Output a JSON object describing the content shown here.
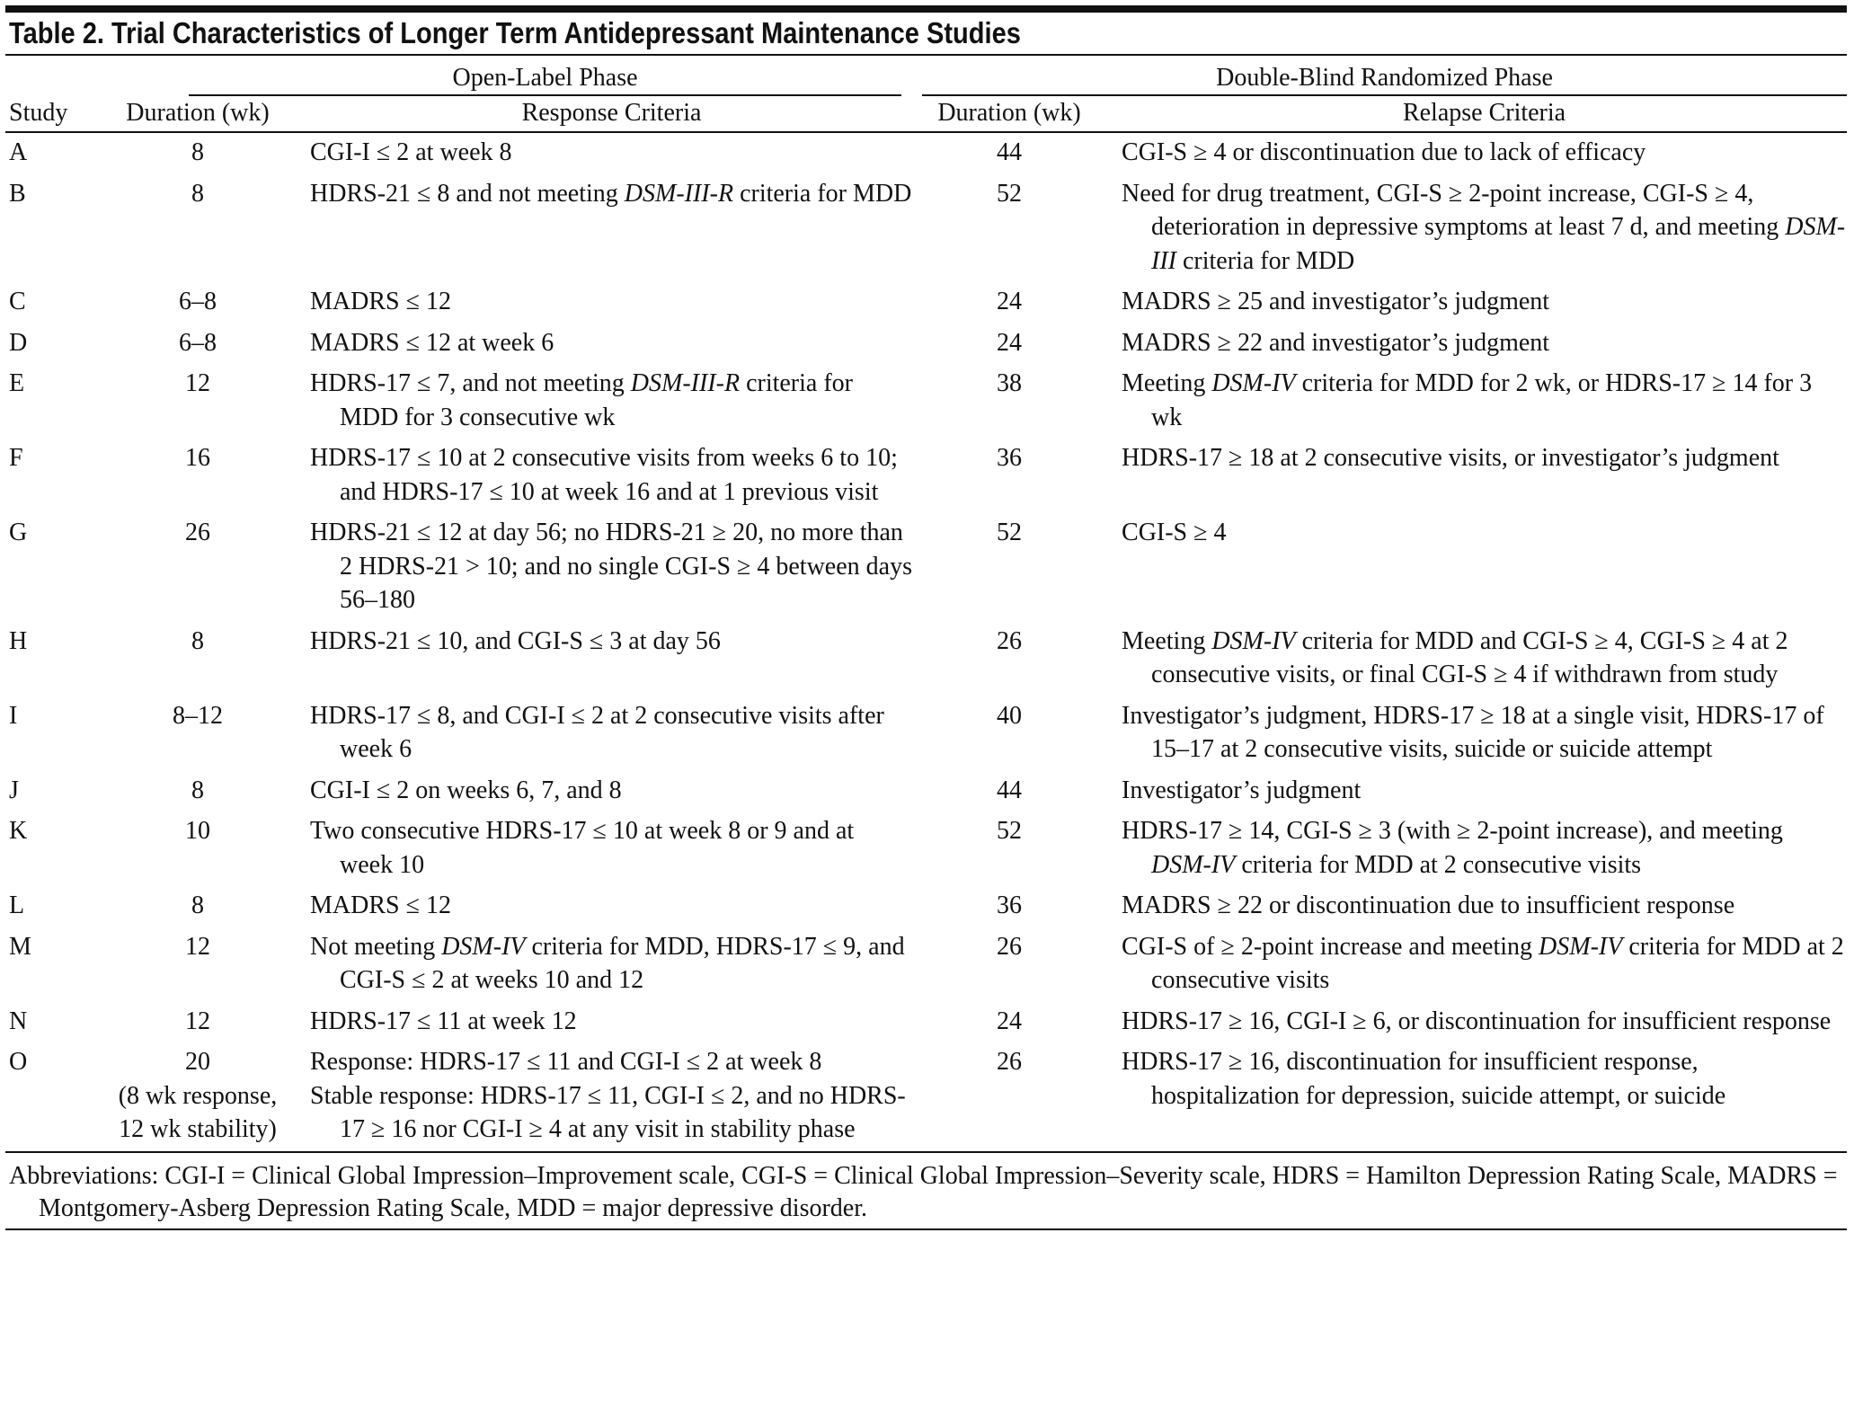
{
  "header": {
    "title": "Table 2. Trial Characteristics of Longer Term Antidepressant Maintenance Studies"
  },
  "table": {
    "groups": [
      "Open-Label Phase",
      "Double-Blind Randomized Phase"
    ],
    "columns": [
      "Study",
      "Duration (wk)",
      "Response Criteria",
      "Duration (wk)",
      "Relapse Criteria"
    ],
    "rows": [
      [
        "A",
        "8",
        "CGI-I ≤ 2 at week 8",
        "44",
        "CGI-S ≥ 4 or discontinuation due to lack of efficacy"
      ],
      [
        "B",
        "8",
        [
          [
            "HDRS-21 ≤ 8 and not meeting ",
            {
              "em": "DSM-III-R"
            },
            " criteria for MDD"
          ]
        ],
        "52",
        [
          [
            "Need for drug treatment, CGI-S ≥ 2-point increase, CGI-S ≥ 4, deterioration in depressive symptoms at least 7 d, and meeting ",
            {
              "em": "DSM-III"
            },
            " criteria for MDD"
          ]
        ]
      ],
      [
        "C",
        "6–8",
        "MADRS ≤ 12",
        "24",
        "MADRS ≥ 25 and investigator’s judgment"
      ],
      [
        "D",
        "6–8",
        "MADRS ≤ 12 at week 6",
        "24",
        "MADRS ≥ 22 and investigator’s judgment"
      ],
      [
        "E",
        "12",
        [
          [
            "HDRS-17 ≤ 7, and not meeting ",
            {
              "em": "DSM-III-R"
            },
            " criteria for MDD for 3 consecutive wk"
          ]
        ],
        "38",
        [
          [
            "Meeting ",
            {
              "em": "DSM-IV"
            },
            " criteria for MDD for 2 wk, or HDRS-17 ≥ 14 for 3 wk"
          ]
        ]
      ],
      [
        "F",
        "16",
        "HDRS-17 ≤ 10 at 2 consecutive visits from weeks 6 to 10; and HDRS-17 ≤ 10 at week 16 and at 1 previous visit",
        "36",
        "HDRS-17 ≥ 18 at 2 consecutive visits, or investigator’s judgment"
      ],
      [
        "G",
        "26",
        "HDRS-21 ≤ 12 at day 56; no HDRS-21 ≥ 20, no more than 2 HDRS-21 > 10; and no single CGI-S ≥ 4 between days 56–180",
        "52",
        "CGI-S ≥ 4"
      ],
      [
        "H",
        "8",
        "HDRS-21 ≤ 10, and CGI-S ≤ 3 at day 56",
        "26",
        [
          [
            "Meeting ",
            {
              "em": "DSM-IV"
            },
            " criteria for MDD and CGI-S ≥ 4, CGI-S ≥ 4 at 2 consecutive visits, or final CGI-S ≥ 4 if withdrawn from study"
          ]
        ]
      ],
      [
        "I",
        "8–12",
        "HDRS-17 ≤ 8, and CGI-I ≤ 2 at 2 consecutive visits after week 6",
        "40",
        "Investigator’s judgment, HDRS-17 ≥ 18 at a single visit, HDRS-17 of 15–17 at 2 consecutive visits, suicide or suicide attempt"
      ],
      [
        "J",
        "8",
        "CGI-I ≤ 2 on weeks 6, 7, and 8",
        "44",
        "Investigator’s judgment"
      ],
      [
        "K",
        "10",
        "Two consecutive HDRS-17 ≤ 10 at week 8 or 9 and at week 10",
        "52",
        [
          [
            "HDRS-17 ≥ 14, CGI-S ≥ 3 (with ≥ 2-point increase), and meeting ",
            {
              "em": "DSM-IV"
            },
            " criteria for MDD at 2 consecutive visits"
          ]
        ]
      ],
      [
        "L",
        "8",
        "MADRS ≤ 12",
        "36",
        "MADRS ≥ 22 or discontinuation due to insufficient response"
      ],
      [
        "M",
        "12",
        [
          [
            "Not meeting ",
            {
              "em": "DSM-IV"
            },
            " criteria for MDD, HDRS-17 ≤ 9, and CGI-S ≤ 2 at weeks 10 and 12"
          ]
        ],
        "26",
        [
          [
            "CGI-S of ≥ 2-point increase and meeting ",
            {
              "em": "DSM-IV"
            },
            " criteria for MDD at 2 consecutive visits"
          ]
        ]
      ],
      [
        "N",
        "12",
        "HDRS-17 ≤ 11 at week 12",
        "24",
        "HDRS-17 ≥ 16, CGI-I ≥ 6, or discontinuation for insufficient response"
      ],
      [
        "O",
        [
          "20",
          "(8 wk response,",
          "12 wk stability)"
        ],
        [
          "Response: HDRS-17 ≤ 11 and CGI-I ≤ 2 at week 8",
          "Stable response: HDRS-17 ≤ 11, CGI-I ≤ 2, and no HDRS-17 ≥ 16 nor CGI-I ≥ 4 at any visit in stability phase"
        ],
        "26",
        "HDRS-17 ≥ 16, discontinuation for insufficient response, hospitalization for depression, suicide attempt, or suicide"
      ]
    ]
  },
  "footnote": "Abbreviations: CGI-I = Clinical Global Impression–Improvement scale, CGI-S = Clinical Global Impression–Severity scale, HDRS = Hamilton Depression Rating Scale, MADRS = Montgomery-Asberg Depression Rating Scale, MDD = major depressive disorder."
}
